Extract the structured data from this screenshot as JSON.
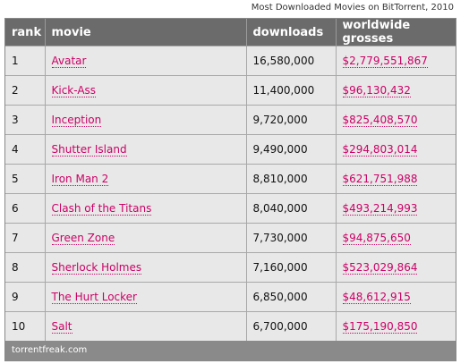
{
  "caption": "Most Downloaded Movies on BitTorrent, 2010",
  "table": {
    "headers": {
      "rank": "rank",
      "movie": "movie",
      "downloads": "downloads",
      "grosses": "worldwide grosses"
    },
    "rows": [
      {
        "rank": "1",
        "movie": "Avatar",
        "downloads": "16,580,000",
        "grosses": "$2,779,551,867"
      },
      {
        "rank": "2",
        "movie": "Kick-Ass",
        "downloads": "11,400,000",
        "grosses": "$96,130,432"
      },
      {
        "rank": "3",
        "movie": "Inception",
        "downloads": "9,720,000",
        "grosses": "$825,408,570"
      },
      {
        "rank": "4",
        "movie": "Shutter Island",
        "downloads": "9,490,000",
        "grosses": "$294,803,014"
      },
      {
        "rank": "5",
        "movie": "Iron Man 2",
        "downloads": "8,810,000",
        "grosses": "$621,751,988"
      },
      {
        "rank": "6",
        "movie": "Clash of the Titans",
        "downloads": "8,040,000",
        "grosses": "$493,214,993"
      },
      {
        "rank": "7",
        "movie": "Green Zone",
        "downloads": "7,730,000",
        "grosses": "$94,875,650"
      },
      {
        "rank": "8",
        "movie": "Sherlock Holmes",
        "downloads": "7,160,000",
        "grosses": "$523,029,864"
      },
      {
        "rank": "9",
        "movie": "The Hurt Locker",
        "downloads": "6,850,000",
        "grosses": "$48,612,915"
      },
      {
        "rank": "10",
        "movie": "Salt",
        "downloads": "6,700,000",
        "grosses": "$175,190,850"
      }
    ],
    "footer": "torrentfreak.com"
  },
  "colors": {
    "header_bg": "#6b6b6b",
    "row_bg": "#e8e8e8",
    "link": "#cc0066",
    "footer_bg": "#8a8a8a"
  }
}
